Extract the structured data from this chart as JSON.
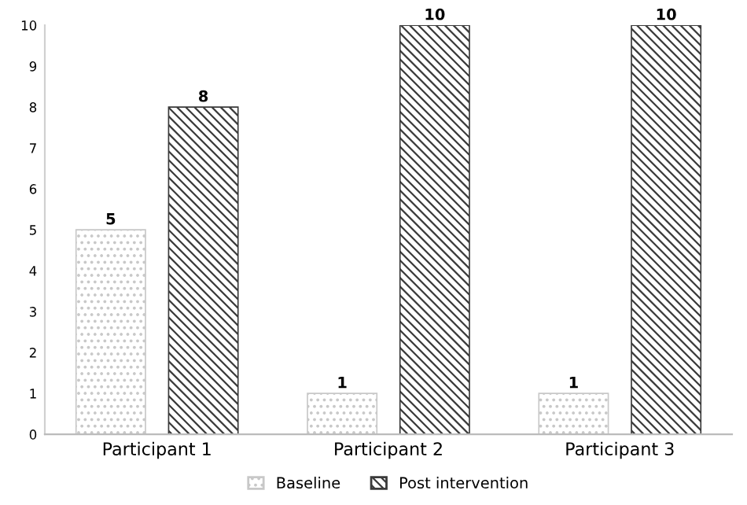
{
  "chart_data": {
    "type": "bar",
    "categories": [
      "Participant 1",
      "Participant 2",
      "Participant 3"
    ],
    "series": [
      {
        "name": "Baseline",
        "color": "#c8c8c8",
        "values": [
          5,
          1,
          1
        ]
      },
      {
        "name": "Post intervention",
        "color": "#3a3a3a",
        "values": [
          8,
          10,
          10
        ]
      }
    ],
    "ylim": [
      0,
      10
    ],
    "yticks": [
      0,
      1,
      2,
      3,
      4,
      5,
      6,
      7,
      8,
      9,
      10
    ],
    "data_labels": true,
    "legend": "bottom",
    "grid": false
  }
}
